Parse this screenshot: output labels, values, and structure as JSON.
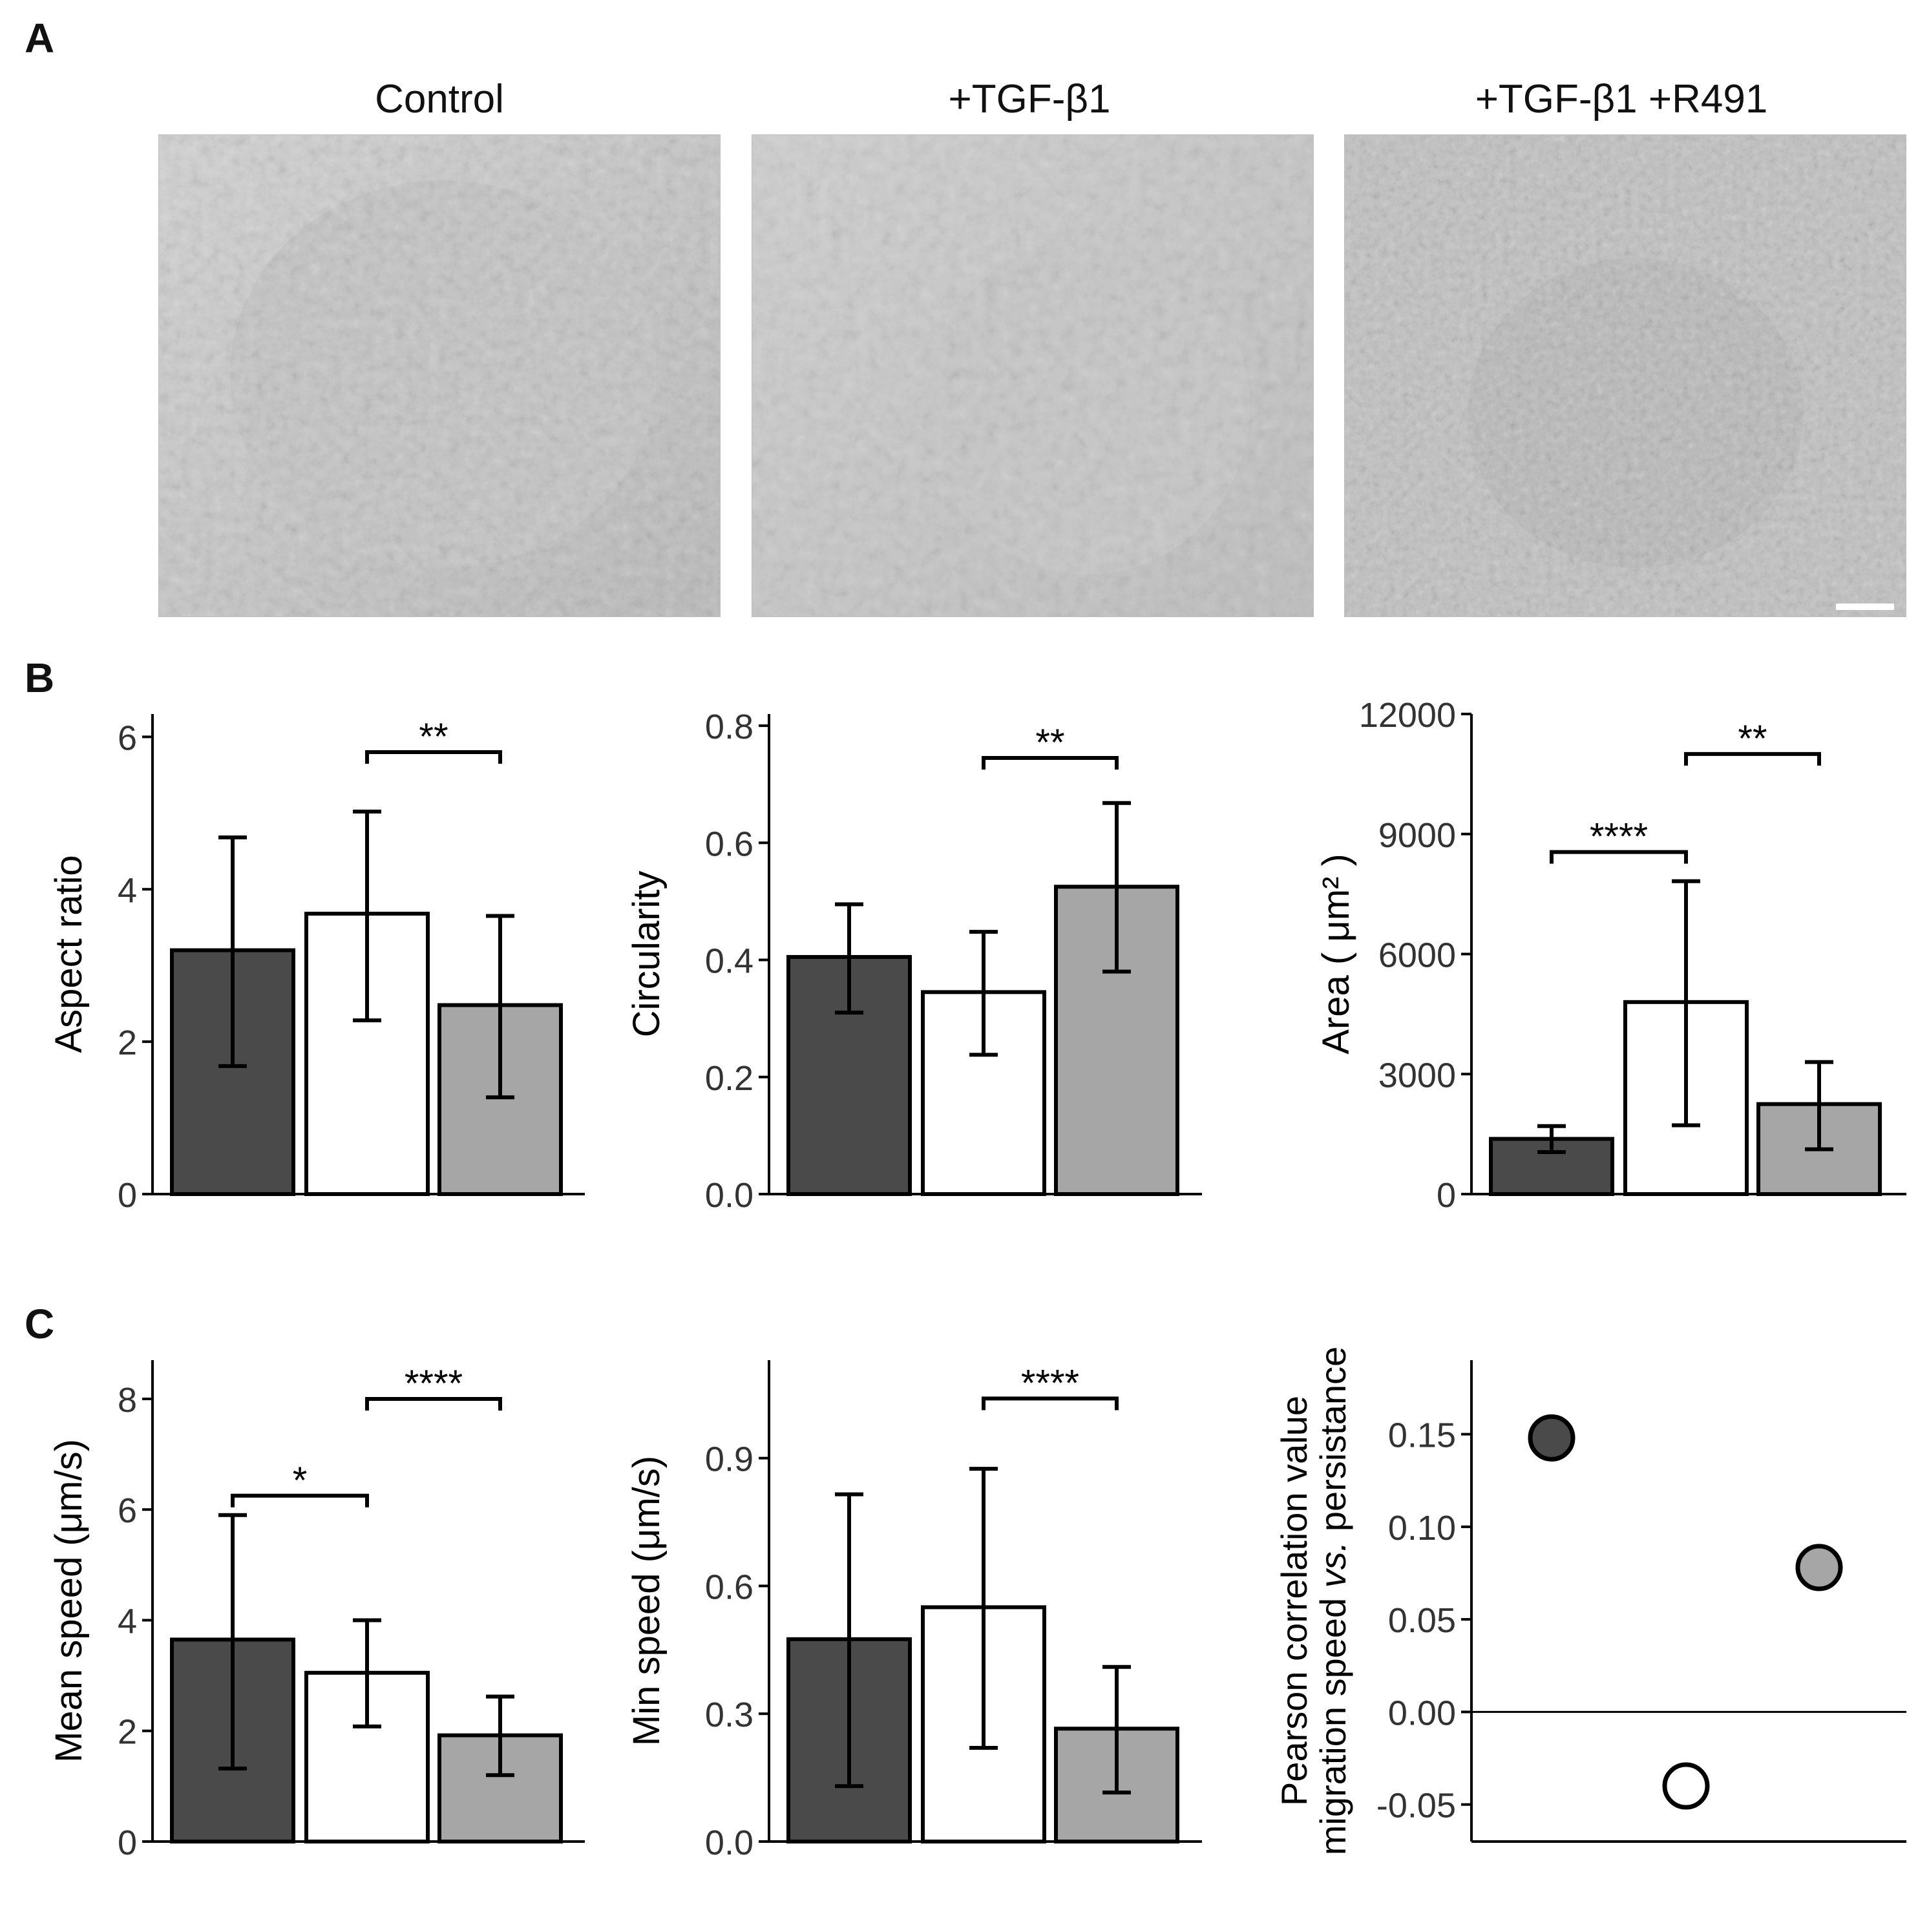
{
  "panels": {
    "a": "A",
    "b": "B",
    "c": "C"
  },
  "images": [
    {
      "title": "Control"
    },
    {
      "title": "+TGF-β1"
    },
    {
      "title": "+TGF-β1 +R491"
    }
  ],
  "colors": {
    "control": "#4a4a4a",
    "tgf": "#ffffff",
    "tgf_r491": "#a6a6a6",
    "axis": "#000000"
  },
  "chart_data": [
    {
      "type": "bar",
      "ylabel": "Aspect ratio",
      "ylim": [
        0,
        6.3
      ],
      "yticks": [
        "0",
        "2",
        "4",
        "6"
      ],
      "ytick_values": [
        0,
        2,
        4,
        6
      ],
      "values": [
        3.2,
        3.68,
        2.48
      ],
      "errors": [
        [
          1.68,
          4.68
        ],
        [
          2.28,
          5.02
        ],
        [
          1.27,
          3.65
        ]
      ],
      "brackets": [
        {
          "from": 1,
          "to": 2,
          "y": 5.8,
          "label": "**"
        }
      ]
    },
    {
      "type": "bar",
      "ylabel": "Circularity",
      "ylim": [
        0,
        0.82
      ],
      "yticks": [
        "0.0",
        "0.2",
        "0.4",
        "0.6",
        "0.8"
      ],
      "ytick_values": [
        0,
        0.2,
        0.4,
        0.6,
        0.8
      ],
      "values": [
        0.405,
        0.345,
        0.525
      ],
      "errors": [
        [
          0.31,
          0.495
        ],
        [
          0.238,
          0.448
        ],
        [
          0.38,
          0.668
        ]
      ],
      "brackets": [
        {
          "from": 1,
          "to": 2,
          "y": 0.745,
          "label": "**"
        }
      ]
    },
    {
      "type": "bar",
      "ylabel": "Area ( μm² )",
      "ylim": [
        0,
        12000
      ],
      "yticks": [
        "0",
        "3000",
        "6000",
        "9000",
        "12000"
      ],
      "ytick_values": [
        0,
        3000,
        6000,
        9000,
        12000
      ],
      "values": [
        1380,
        4800,
        2250
      ],
      "errors": [
        [
          1050,
          1700
        ],
        [
          1720,
          7820
        ],
        [
          1120,
          3300
        ]
      ],
      "brackets": [
        {
          "from": 0,
          "to": 1,
          "y": 8550,
          "label": "****"
        },
        {
          "from": 1,
          "to": 2,
          "y": 11000,
          "label": "**"
        }
      ]
    },
    {
      "type": "bar",
      "ylabel": "Mean speed (μm/s)",
      "ylim": [
        0,
        8.7
      ],
      "yticks": [
        "0",
        "2",
        "4",
        "6",
        "8"
      ],
      "ytick_values": [
        0,
        2,
        4,
        6,
        8
      ],
      "values": [
        3.65,
        3.05,
        1.92
      ],
      "errors": [
        [
          1.32,
          5.9
        ],
        [
          2.08,
          4.0
        ],
        [
          1.2,
          2.62
        ]
      ],
      "brackets": [
        {
          "from": 0,
          "to": 1,
          "y": 6.25,
          "label": "*"
        },
        {
          "from": 1,
          "to": 2,
          "y": 8.0,
          "label": "****"
        }
      ]
    },
    {
      "type": "bar",
      "ylabel": "Min speed (μm/s)",
      "ylim": [
        0,
        1.13
      ],
      "yticks": [
        "0.0",
        "0.3",
        "0.6",
        "0.9"
      ],
      "ytick_values": [
        0,
        0.3,
        0.6,
        0.9
      ],
      "values": [
        0.475,
        0.55,
        0.265
      ],
      "errors": [
        [
          0.13,
          0.815
        ],
        [
          0.22,
          0.875
        ],
        [
          0.115,
          0.41
        ]
      ],
      "brackets": [
        {
          "from": 1,
          "to": 2,
          "y": 1.04,
          "label": "****"
        }
      ]
    },
    {
      "type": "scatter",
      "ylabel_line1": "Pearson correlation value",
      "ylabel_line2_pre": "migration speed ",
      "ylabel_line2_it": "vs.",
      "ylabel_line2_post": " persistance",
      "ylim": [
        -0.07,
        0.19
      ],
      "yticks": [
        "-0.05",
        "0.00",
        "0.05",
        "0.10",
        "0.15"
      ],
      "ytick_values": [
        -0.05,
        0.0,
        0.05,
        0.1,
        0.15
      ],
      "values": [
        0.148,
        -0.04,
        0.078
      ],
      "zero_line": true
    }
  ]
}
